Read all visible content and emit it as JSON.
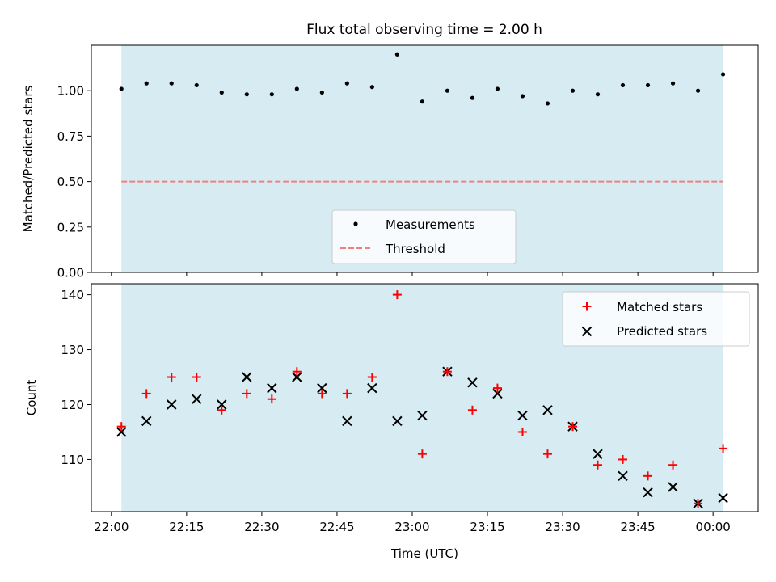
{
  "title": "Flux total observing time = 2.00 h",
  "colors": {
    "band": "#add8e6",
    "measurement": "#000000",
    "threshold": "#f08080",
    "matched": "#ff0000",
    "predicted": "#000000"
  },
  "chart_data": [
    {
      "type": "scatter",
      "panel": "top",
      "title": "Flux total observing time = 2.00 h",
      "xlabel": "",
      "ylabel": "Matched/Predicted stars",
      "ylim": [
        0,
        1.25
      ],
      "yticks": [
        "0.00",
        "0.25",
        "0.50",
        "0.75",
        "1.00"
      ],
      "ytick_values": [
        0,
        0.25,
        0.5,
        0.75,
        1.0
      ],
      "shaded_span": [
        "22:02",
        "00:02"
      ],
      "legend": {
        "placement": "lower center",
        "entries": [
          "Measurements",
          "Threshold"
        ]
      },
      "threshold": 0.5,
      "x": [
        "22:02",
        "22:07",
        "22:12",
        "22:17",
        "22:22",
        "22:27",
        "22:32",
        "22:37",
        "22:42",
        "22:47",
        "22:52",
        "22:57",
        "23:02",
        "23:07",
        "23:12",
        "23:17",
        "23:22",
        "23:27",
        "23:32",
        "23:37",
        "23:42",
        "23:47",
        "23:52",
        "23:57",
        "00:02"
      ],
      "series": [
        {
          "name": "Measurements",
          "values": [
            1.01,
            1.04,
            1.04,
            1.03,
            0.99,
            0.98,
            0.98,
            1.01,
            0.99,
            1.04,
            1.02,
            1.2,
            0.94,
            1.0,
            0.96,
            1.01,
            0.97,
            0.93,
            1.0,
            0.98,
            1.03,
            1.03,
            1.04,
            1.0,
            1.09
          ]
        },
        {
          "name": "Threshold",
          "values": [
            0.5,
            0.5
          ]
        }
      ]
    },
    {
      "type": "scatter",
      "panel": "bottom",
      "xlabel": "Time (UTC)",
      "ylabel": "Count",
      "ylim": [
        100.5,
        142
      ],
      "yticks": [
        "110",
        "120",
        "130",
        "140"
      ],
      "ytick_values": [
        110,
        120,
        130,
        140
      ],
      "xticks": [
        "22:00",
        "22:15",
        "22:30",
        "22:45",
        "23:00",
        "23:15",
        "23:30",
        "23:45",
        "00:00"
      ],
      "shaded_span": [
        "22:02",
        "00:02"
      ],
      "legend": {
        "placement": "upper right",
        "entries": [
          "Matched stars",
          "Predicted stars"
        ]
      },
      "x": [
        "22:02",
        "22:07",
        "22:12",
        "22:17",
        "22:22",
        "22:27",
        "22:32",
        "22:37",
        "22:42",
        "22:47",
        "22:52",
        "22:57",
        "23:02",
        "23:07",
        "23:12",
        "23:17",
        "23:22",
        "23:27",
        "23:32",
        "23:37",
        "23:42",
        "23:47",
        "23:52",
        "23:57",
        "00:02"
      ],
      "series": [
        {
          "name": "Matched stars",
          "values": [
            116,
            122,
            125,
            125,
            119,
            122,
            121,
            126,
            122,
            122,
            125,
            140,
            111,
            126,
            119,
            123,
            115,
            111,
            116,
            109,
            110,
            107,
            109,
            102,
            112
          ]
        },
        {
          "name": "Predicted stars",
          "values": [
            115,
            117,
            120,
            121,
            120,
            125,
            123,
            125,
            123,
            117,
            123,
            117,
            118,
            126,
            124,
            122,
            118,
            119,
            116,
            111,
            107,
            104,
            105,
            102,
            103
          ]
        }
      ]
    }
  ]
}
